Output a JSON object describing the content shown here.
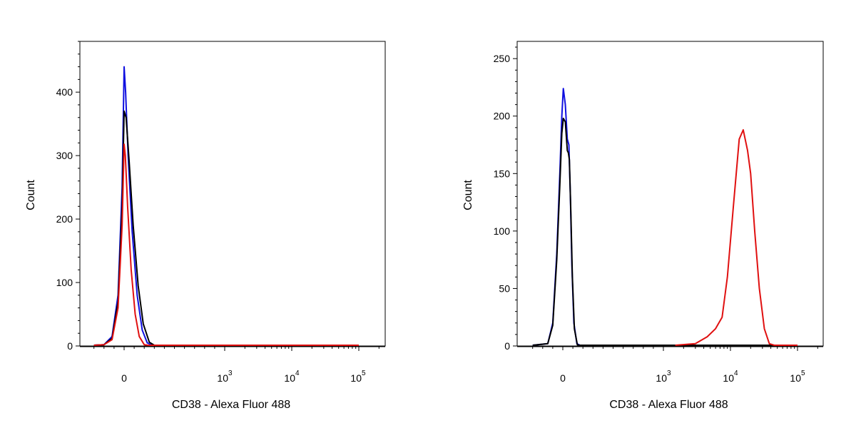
{
  "chart_data": [
    {
      "type": "line",
      "xlabel": "CD38 - Alexa Fluor 488",
      "ylabel": "Count",
      "x_scale": "biexponential",
      "x_tick_labels": [
        {
          "base": "0",
          "exp": ""
        },
        {
          "base": "10",
          "exp": "3"
        },
        {
          "base": "10",
          "exp": "4"
        },
        {
          "base": "10",
          "exp": "5"
        }
      ],
      "y_ticks": [
        0,
        100,
        200,
        300,
        400
      ],
      "ylim": [
        0,
        480
      ],
      "grid": false,
      "series": [
        {
          "color": "#1010e0",
          "points": [
            [
              -300,
              0
            ],
            [
              -200,
              2
            ],
            [
              -120,
              15
            ],
            [
              -60,
              80
            ],
            [
              -20,
              250
            ],
            [
              0,
              440
            ],
            [
              15,
              400
            ],
            [
              40,
              300
            ],
            [
              80,
              180
            ],
            [
              130,
              80
            ],
            [
              180,
              25
            ],
            [
              230,
              5
            ],
            [
              280,
              0
            ],
            [
              100000,
              0
            ]
          ]
        },
        {
          "color": "#000000",
          "points": [
            [
              -300,
              0
            ],
            [
              -200,
              2
            ],
            [
              -120,
              12
            ],
            [
              -60,
              70
            ],
            [
              -20,
              220
            ],
            [
              0,
              370
            ],
            [
              20,
              360
            ],
            [
              50,
              290
            ],
            [
              90,
              190
            ],
            [
              140,
              95
            ],
            [
              190,
              35
            ],
            [
              250,
              6
            ],
            [
              300,
              0
            ],
            [
              100000,
              0
            ]
          ]
        },
        {
          "color": "#e01010",
          "points": [
            [
              -300,
              0
            ],
            [
              -200,
              2
            ],
            [
              -120,
              10
            ],
            [
              -60,
              60
            ],
            [
              -20,
              190
            ],
            [
              0,
              318
            ],
            [
              12,
              300
            ],
            [
              35,
              220
            ],
            [
              70,
              120
            ],
            [
              110,
              50
            ],
            [
              150,
              15
            ],
            [
              200,
              2
            ],
            [
              240,
              0
            ],
            [
              100000,
              0
            ]
          ]
        }
      ]
    },
    {
      "type": "line",
      "xlabel": "CD38 - Alexa Fluor 488",
      "ylabel": "Count",
      "x_scale": "biexponential",
      "x_tick_labels": [
        {
          "base": "0",
          "exp": ""
        },
        {
          "base": "10",
          "exp": "3"
        },
        {
          "base": "10",
          "exp": "4"
        },
        {
          "base": "10",
          "exp": "5"
        }
      ],
      "y_ticks": [
        0,
        50,
        100,
        150,
        200,
        250
      ],
      "ylim": [
        0,
        265
      ],
      "grid": false,
      "series": [
        {
          "color": "#1010e0",
          "points": [
            [
              -300,
              0
            ],
            [
              -150,
              2
            ],
            [
              -100,
              20
            ],
            [
              -60,
              80
            ],
            [
              -30,
              150
            ],
            [
              -10,
              200
            ],
            [
              5,
              224
            ],
            [
              25,
              210
            ],
            [
              45,
              180
            ],
            [
              60,
              175
            ],
            [
              75,
              130
            ],
            [
              90,
              70
            ],
            [
              110,
              20
            ],
            [
              140,
              2
            ],
            [
              170,
              0
            ],
            [
              100000,
              0
            ]
          ]
        },
        {
          "color": "#000000",
          "points": [
            [
              -300,
              0
            ],
            [
              -150,
              2
            ],
            [
              -100,
              18
            ],
            [
              -60,
              75
            ],
            [
              -30,
              140
            ],
            [
              -10,
              185
            ],
            [
              5,
              198
            ],
            [
              25,
              195
            ],
            [
              45,
              170
            ],
            [
              55,
              168
            ],
            [
              65,
              162
            ],
            [
              80,
              115
            ],
            [
              95,
              60
            ],
            [
              115,
              15
            ],
            [
              145,
              1
            ],
            [
              170,
              0
            ],
            [
              100000,
              0
            ]
          ]
        },
        {
          "color": "#e01010",
          "points": [
            [
              1500,
              0
            ],
            [
              3000,
              2
            ],
            [
              4500,
              8
            ],
            [
              6000,
              15
            ],
            [
              7500,
              25
            ],
            [
              9000,
              60
            ],
            [
              11000,
              120
            ],
            [
              13500,
              180
            ],
            [
              15500,
              188
            ],
            [
              18000,
              170
            ],
            [
              20000,
              150
            ],
            [
              23000,
              100
            ],
            [
              27000,
              50
            ],
            [
              32000,
              15
            ],
            [
              38000,
              2
            ],
            [
              45000,
              0
            ],
            [
              100000,
              0
            ]
          ]
        }
      ]
    }
  ]
}
